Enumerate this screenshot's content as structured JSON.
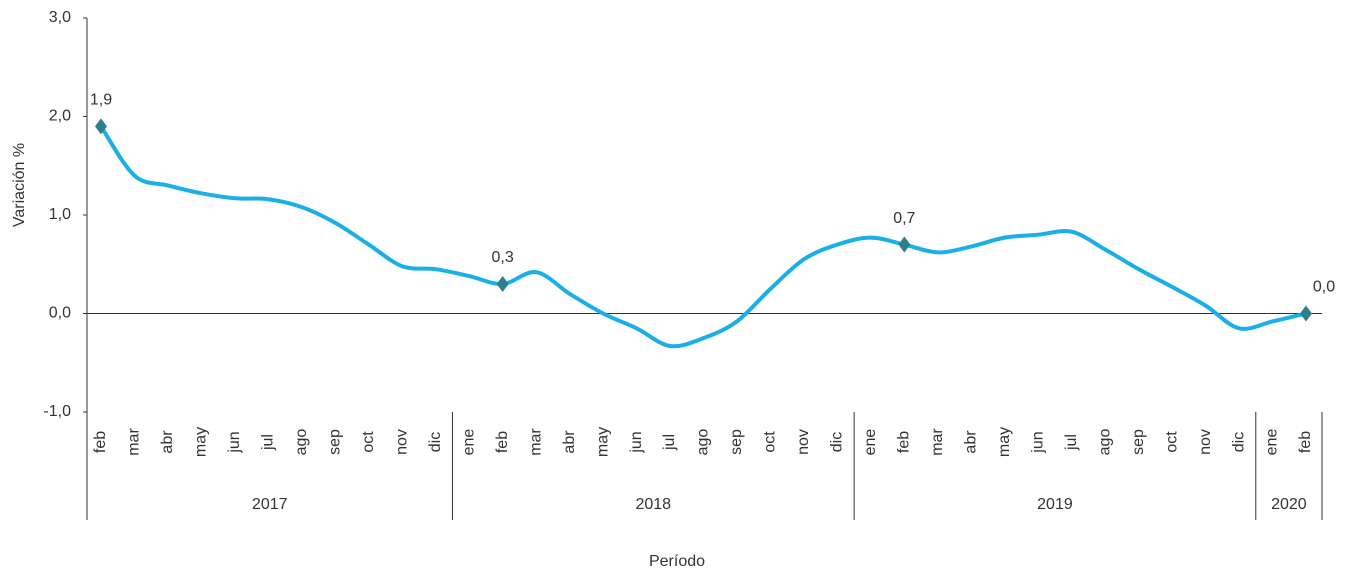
{
  "chart_data": {
    "type": "line",
    "y_label": "Variación %",
    "x_label": "Período",
    "categories": [
      "feb",
      "mar",
      "abr",
      "may",
      "jun",
      "jul",
      "ago",
      "sep",
      "oct",
      "nov",
      "dic",
      "ene",
      "feb",
      "mar",
      "abr",
      "may",
      "jun",
      "jul",
      "ago",
      "sep",
      "oct",
      "nov",
      "dic",
      "ene",
      "feb",
      "mar",
      "abr",
      "may",
      "jun",
      "jul",
      "ago",
      "sep",
      "oct",
      "nov",
      "dic",
      "ene",
      "feb"
    ],
    "years": [
      "2017",
      "2018",
      "2019",
      "2020"
    ],
    "series": [
      {
        "name": "Variación %",
        "color": "#1aafe6",
        "values": [
          1.9,
          1.4,
          1.3,
          1.22,
          1.17,
          1.16,
          1.08,
          0.92,
          0.7,
          0.48,
          0.45,
          0.38,
          0.3,
          0.42,
          0.2,
          0.0,
          -0.15,
          -0.33,
          -0.25,
          -0.08,
          0.25,
          0.55,
          0.7,
          0.77,
          0.7,
          0.62,
          0.68,
          0.77,
          0.8,
          0.83,
          0.65,
          0.45,
          0.27,
          0.08,
          -0.15,
          -0.08,
          0.0
        ],
        "value_labels": [
          "1,9",
          null,
          null,
          null,
          null,
          null,
          null,
          null,
          null,
          null,
          null,
          null,
          "0,3",
          null,
          null,
          null,
          null,
          null,
          null,
          null,
          null,
          null,
          null,
          null,
          "0,7",
          null,
          null,
          null,
          null,
          null,
          null,
          null,
          null,
          null,
          null,
          null,
          "0,0"
        ],
        "marker_color": "#2e7f8c"
      }
    ],
    "ylim": [
      -1,
      3
    ],
    "yticks": [
      {
        "value": -1,
        "label": "-1,0"
      },
      {
        "value": 0,
        "label": "0,0"
      },
      {
        "value": 1,
        "label": "1,0"
      },
      {
        "value": 2,
        "label": "2,0"
      },
      {
        "value": 3,
        "label": "3,0"
      }
    ]
  }
}
